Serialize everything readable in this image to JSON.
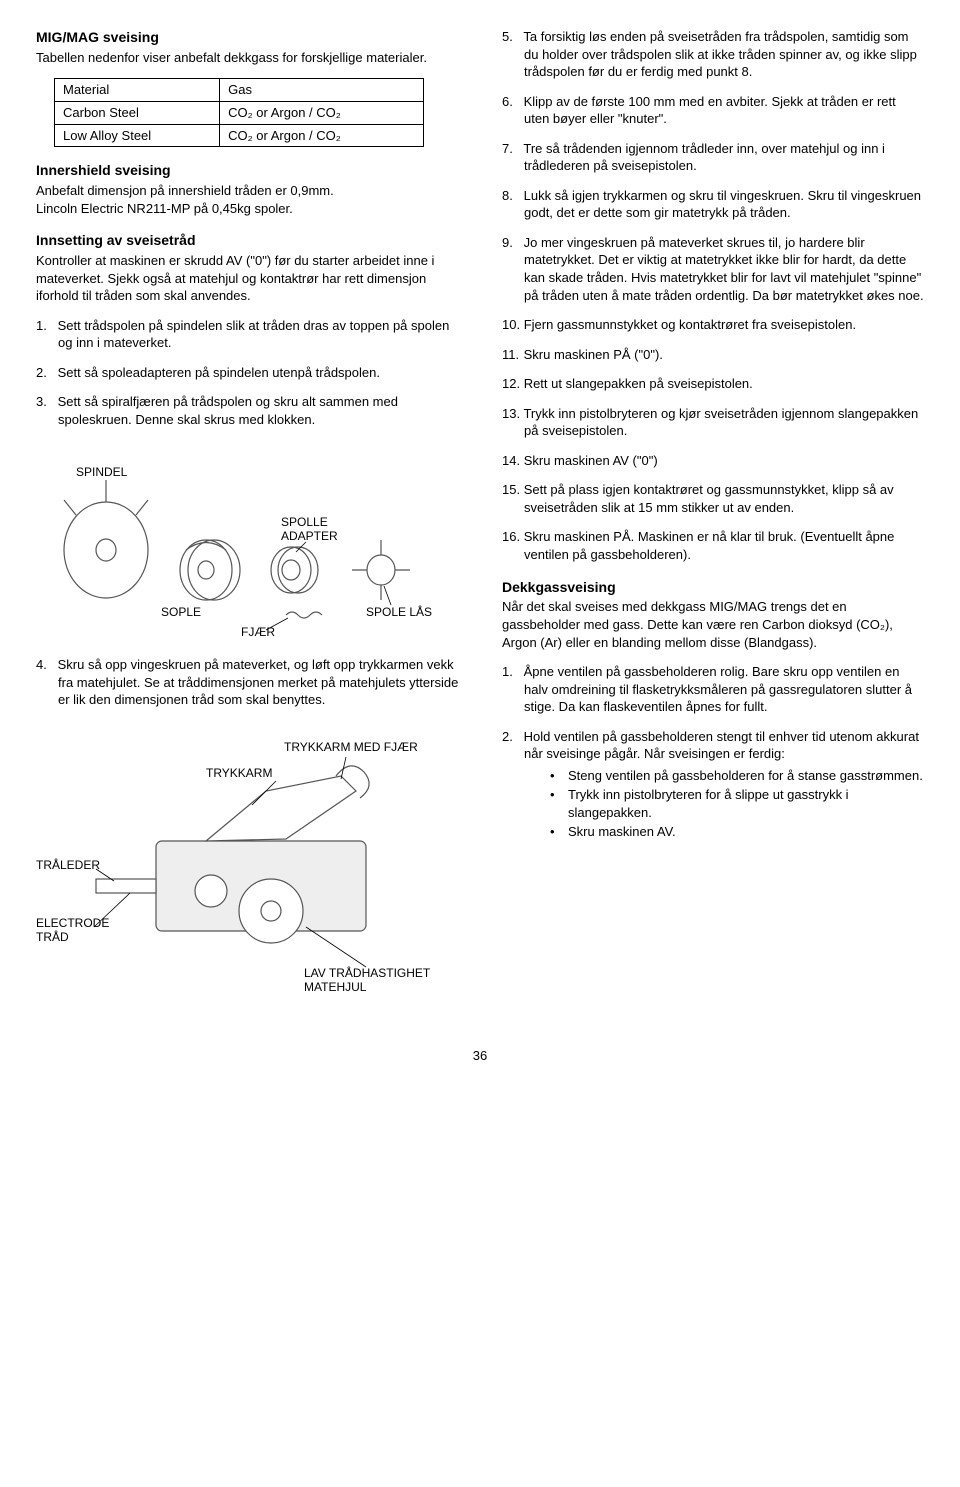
{
  "left": {
    "h1": "MIG/MAG sveising",
    "intro": "Tabellen nedenfor viser anbefalt dekkgass for forskjellige materialer.",
    "table": {
      "header": [
        "Material",
        "Gas"
      ],
      "rows": [
        [
          "Carbon Steel",
          "CO₂ or Argon / CO₂"
        ],
        [
          "Low Alloy Steel",
          "CO₂ or Argon / CO₂"
        ]
      ]
    },
    "h2": "Innershield sveising",
    "inner1": "Anbefalt dimensjon på innershield tråden er 0,9mm.",
    "inner2": "Lincoln Electric NR211-MP på 0,45kg spoler.",
    "h3": "Innsetting av sveisetråd",
    "ins_intro": "Kontroller at maskinen er skrudd AV (\"0\") før du starter arbeidet inne i mateverket. Sjekk også at matehjul og kontaktrør har rett dimensjon iforhold til tråden som skal anvendes.",
    "steps_a": [
      "Sett trådspolen på spindelen slik at tråden dras av toppen på spolen og inn i mateverket.",
      "Sett så spoleadapteren på spindelen utenpå trådspolen.",
      "Sett så spiralfjæren på trådspolen og skru alt sammen med spoleskruen. Denne skal skrus med klokken."
    ],
    "diagram1": {
      "labels": {
        "spindel": "SPINDEL",
        "sople": "SOPLE",
        "adapter1": "SPOLLE",
        "adapter2": "ADAPTER",
        "lock": "SPOLE LÅS",
        "fjaer": "FJÆR"
      }
    },
    "step4": "Skru så opp vingeskruen på mateverket, og løft opp trykkarmen vekk fra matehjulet. Se at tråddimensjonen merket på matehjulets ytterside er lik den dimensjonen tråd som skal benyttes.",
    "diagram2": {
      "labels": {
        "trykkarm_fjaer": "TRYKKARM MED FJÆR",
        "trykkarm": "TRYKKARM",
        "traleder": "TRÅLEDER",
        "elec1": "ELECTRODE",
        "elec2": "TRÅD",
        "lav1": "LAV TRÅDHASTIGHET",
        "lav2": "MATEHJUL"
      }
    }
  },
  "right": {
    "steps_b": [
      "Ta forsiktig løs enden på sveisetråden fra trådspolen, samtidig som du holder over trådspolen slik at ikke tråden spinner av, og ikke slipp trådspolen før du er ferdig med punkt 8.",
      "Klipp av de første 100 mm med en avbiter. Sjekk at tråden er rett uten bøyer eller \"knuter\".",
      "Tre så trådenden igjennom trådleder inn, over matehjul og inn i trådlederen på sveisepistolen.",
      "Lukk så igjen trykkarmen og skru til vingeskruen. Skru til vingeskruen godt, det er dette som gir matetrykk på tråden.",
      "Jo mer vingeskruen på mateverket skrues til, jo hardere blir matetrykket. Det er viktig at matetrykket ikke blir for hardt, da dette kan skade tråden. Hvis matetrykket blir for lavt vil matehjulet \"spinne\" på tråden uten å mate tråden ordentlig. Da bør matetrykket økes noe.",
      "Fjern gassmunnstykket og kontaktrøret fra sveisepistolen.",
      "Skru maskinen PÅ (\"0\").",
      "Rett ut slangepakken på sveisepistolen.",
      "Trykk inn pistolbryteren og kjør sveisetråden igjennom slangepakken på sveisepistolen.",
      "Skru maskinen AV (\"0\")",
      "Sett på plass igjen kontaktrøret og gassmunnstykket, klipp så av sveisetråden slik at 15 mm stikker ut av enden.",
      "Skru maskinen PÅ. Maskinen er nå klar til bruk. (Eventuellt åpne ventilen på gassbeholderen)."
    ],
    "start_num": 5,
    "h4": "Dekkgassveising",
    "dek_intro": "Når det skal sveises med dekkgass MIG/MAG trengs det en gassbeholder med gass. Dette kan være ren Carbon dioksyd (CO₂), Argon (Ar) eller en blanding mellom disse (Blandgass).",
    "dek_steps": [
      "Åpne ventilen på gassbeholderen rolig. Bare skru opp ventilen en halv omdreining til flasketrykksmåleren på gassregulatoren slutter å stige. Da kan flaskeventilen åpnes for fullt.",
      "Hold ventilen på gassbeholderen stengt til enhver tid utenom akkurat når sveisinge pågår. Når sveisingen er ferdig:"
    ],
    "dek_bullets": [
      "Steng ventilen på gassbeholderen for å stanse gasstrømmen.",
      "Trykk inn pistolbryteren for å slippe ut gasstrykk i slangepakken.",
      "Skru maskinen AV."
    ]
  },
  "pagenum": "36"
}
